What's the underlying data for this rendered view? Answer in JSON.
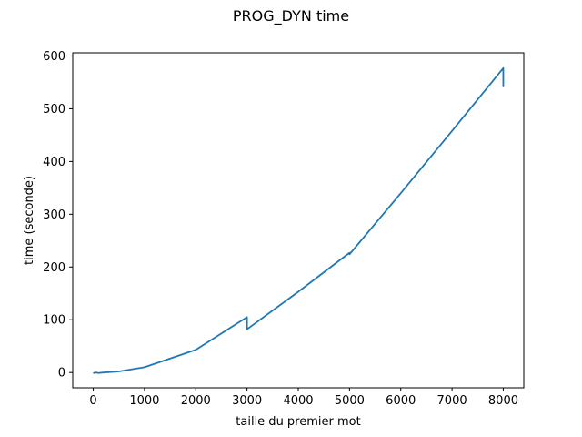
{
  "chart_data": {
    "type": "line",
    "title": "PROG_DYN time",
    "xlabel": "taille du premier mot",
    "ylabel": "time (seconde)",
    "xlim": [
      -400,
      8400
    ],
    "ylim": [
      -29,
      606
    ],
    "xticks": [
      0,
      1000,
      2000,
      3000,
      4000,
      5000,
      6000,
      7000,
      8000
    ],
    "yticks": [
      0,
      100,
      200,
      300,
      400,
      500,
      600
    ],
    "grid": false,
    "line_color": "#1f77b4",
    "series": [
      {
        "x": [
          0,
          10,
          50,
          100,
          200,
          500,
          1000,
          2000,
          3000,
          3000,
          4000,
          5000,
          5000,
          6000,
          7000,
          8000,
          8000
        ],
        "y": [
          0,
          -1,
          0,
          -1,
          0,
          2,
          10,
          43,
          105,
          82,
          153,
          227,
          224,
          340,
          458,
          577,
          541
        ]
      }
    ]
  }
}
